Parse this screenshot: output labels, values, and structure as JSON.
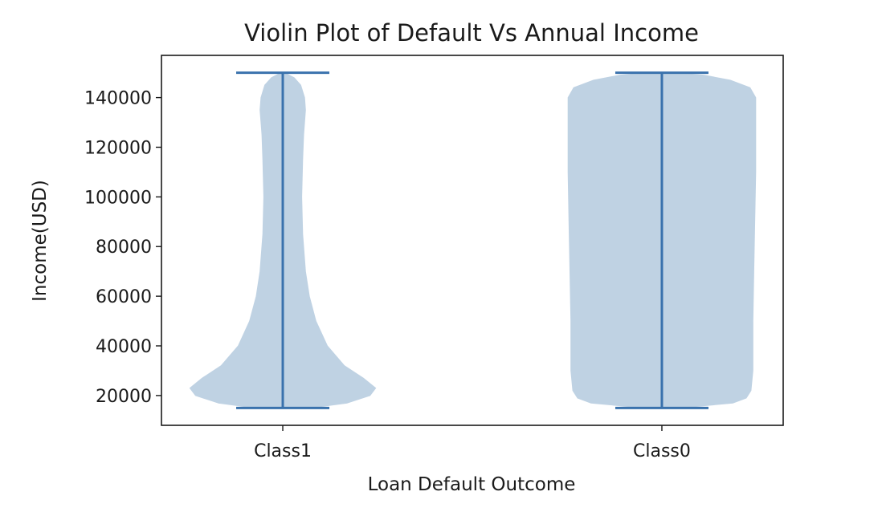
{
  "chart_data": {
    "type": "violin",
    "title": "Violin Plot of Default Vs Annual Income",
    "xlabel": "Loan Default Outcome",
    "ylabel": "Income(USD)",
    "categories": [
      "Class1",
      "Class0"
    ],
    "ylim": [
      8000,
      157000
    ],
    "yticks": [
      20000,
      40000,
      60000,
      80000,
      100000,
      120000,
      140000
    ],
    "grid": false,
    "color": "#b0c7dd",
    "line_color": "#3a72ad",
    "series": [
      {
        "category": "Class1",
        "min": 15000,
        "max": 150000,
        "density": [
          [
            15000,
            0.3
          ],
          [
            17000,
            0.68
          ],
          [
            20000,
            0.92
          ],
          [
            23000,
            0.98
          ],
          [
            27000,
            0.85
          ],
          [
            32000,
            0.65
          ],
          [
            40000,
            0.47
          ],
          [
            50000,
            0.35
          ],
          [
            60000,
            0.28
          ],
          [
            70000,
            0.24
          ],
          [
            85000,
            0.21
          ],
          [
            100000,
            0.2
          ],
          [
            115000,
            0.21
          ],
          [
            125000,
            0.22
          ],
          [
            135000,
            0.24
          ],
          [
            140000,
            0.23
          ],
          [
            145000,
            0.19
          ],
          [
            148000,
            0.12
          ],
          [
            150000,
            0.02
          ]
        ]
      },
      {
        "category": "Class0",
        "min": 15000,
        "max": 150000,
        "density": [
          [
            15000,
            0.2
          ],
          [
            17000,
            0.75
          ],
          [
            19000,
            0.89
          ],
          [
            22000,
            0.94
          ],
          [
            30000,
            0.96
          ],
          [
            50000,
            0.96
          ],
          [
            70000,
            0.97
          ],
          [
            90000,
            0.98
          ],
          [
            110000,
            0.99
          ],
          [
            130000,
            0.99
          ],
          [
            140000,
            0.99
          ],
          [
            144000,
            0.93
          ],
          [
            147000,
            0.72
          ],
          [
            149000,
            0.45
          ],
          [
            150000,
            0.15
          ]
        ]
      }
    ]
  }
}
